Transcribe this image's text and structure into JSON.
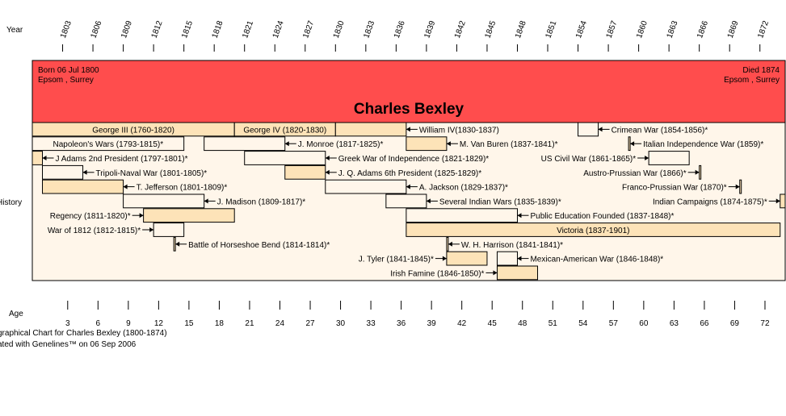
{
  "chart_data": {
    "type": "timeline",
    "title": "Charles Bexley",
    "axes": {
      "year_label": "Year",
      "age_label": "Age",
      "history_label": "History",
      "year_ticks": [
        "1803",
        "1806",
        "1809",
        "1812",
        "1815",
        "1818",
        "1821",
        "1824",
        "1827",
        "1830",
        "1833",
        "1836",
        "1839",
        "1842",
        "1845",
        "1848",
        "1851",
        "1854",
        "1857",
        "1860",
        "1863",
        "1866",
        "1869",
        "1872"
      ],
      "age_ticks": [
        "3",
        "6",
        "9",
        "12",
        "15",
        "18",
        "21",
        "24",
        "27",
        "30",
        "33",
        "36",
        "39",
        "42",
        "45",
        "48",
        "51",
        "54",
        "57",
        "60",
        "63",
        "66",
        "69",
        "72"
      ]
    },
    "person": {
      "birth_line1": "Born 06 Jul 1800",
      "birth_line2": "Epsom , Surrey",
      "death_line1": "Died 1874",
      "death_line2": "Epsom , Surrey",
      "birth_year": 1800.5,
      "death_year": 1874
    },
    "events": [
      {
        "label": "George III (1760-1820)",
        "start": 1800,
        "end": 1820,
        "row": 0,
        "style": "inside"
      },
      {
        "label": "George IV (1820-1830)",
        "start": 1820,
        "end": 1830,
        "row": 0,
        "style": "inside"
      },
      {
        "label": "William IV(1830-1837)",
        "start": 1830,
        "end": 1837,
        "row": 0,
        "style": "arrow"
      },
      {
        "label": "Crimean War (1854-1856)*",
        "start": 1854,
        "end": 1856,
        "row": 0,
        "style": "arrow",
        "outline": true
      },
      {
        "label": "Napoleon's Wars (1793-1815)*",
        "start": 1800,
        "end": 1815,
        "row": 1,
        "style": "inside",
        "outline": true
      },
      {
        "label": "J. Monroe (1817-1825)*",
        "start": 1817,
        "end": 1825,
        "row": 1,
        "style": "arrow",
        "outline": true
      },
      {
        "label": "M. Van Buren (1837-1841)*",
        "start": 1837,
        "end": 1841,
        "row": 1,
        "style": "arrow"
      },
      {
        "label": "Italian Independence War (1859)*",
        "start": 1859,
        "end": 1859,
        "row": 1,
        "style": "arrow"
      },
      {
        "label": "J Adams 2nd President (1797-1801)*",
        "start": 1800,
        "end": 1801,
        "row": 2,
        "style": "arrow"
      },
      {
        "label": "Greek War of Independence (1821-1829)*",
        "start": 1821,
        "end": 1829,
        "row": 2,
        "style": "arrow",
        "outline": true
      },
      {
        "label": "US Civil War (1861-1865)*",
        "start": 1861,
        "end": 1865,
        "row": 2,
        "style": "left",
        "outline": true
      },
      {
        "label": "Tripoli-Naval War (1801-1805)*",
        "start": 1801,
        "end": 1805,
        "row": 3,
        "style": "arrow",
        "outline": true
      },
      {
        "label": "J. Q. Adams 6th President (1825-1829)*",
        "start": 1825,
        "end": 1829,
        "row": 3,
        "style": "arrow"
      },
      {
        "label": "Austro-Prussian War (1866)*",
        "start": 1866,
        "end": 1866,
        "row": 3,
        "style": "left"
      },
      {
        "label": "T. Jefferson (1801-1809)*",
        "start": 1801,
        "end": 1809,
        "row": 4,
        "style": "arrow"
      },
      {
        "label": "A. Jackson (1829-1837)*",
        "start": 1829,
        "end": 1837,
        "row": 4,
        "style": "arrow",
        "outline": true
      },
      {
        "label": "Franco-Prussian War (1870)*",
        "start": 1870,
        "end": 1870,
        "row": 4,
        "style": "left"
      },
      {
        "label": "J. Madison (1809-1817)*",
        "start": 1809,
        "end": 1817,
        "row": 5,
        "style": "arrow",
        "outline": true
      },
      {
        "label": "Several Indian Wars (1835-1839)*",
        "start": 1835,
        "end": 1839,
        "row": 5,
        "style": "arrow",
        "outline": true
      },
      {
        "label": "Indian Campaigns (1874-1875)*",
        "start": 1874,
        "end": 1875,
        "row": 5,
        "style": "left"
      },
      {
        "label": "Regency (1811-1820)*",
        "start": 1811,
        "end": 1820,
        "row": 6,
        "style": "left"
      },
      {
        "label": "Public Education Founded (1837-1848)*",
        "start": 1837,
        "end": 1848,
        "row": 6,
        "style": "arrow",
        "outline": true
      },
      {
        "label": "War of 1812 (1812-1815)*",
        "start": 1812,
        "end": 1815,
        "row": 7,
        "style": "left",
        "outline": true
      },
      {
        "label": "Victoria (1837-1901)",
        "start": 1837,
        "end": 1874,
        "row": 7,
        "style": "inside"
      },
      {
        "label": "Battle of Horseshoe Bend (1814-1814)*",
        "start": 1814,
        "end": 1814,
        "row": 8,
        "style": "arrow"
      },
      {
        "label": "W. H. Harrison (1841-1841)*",
        "start": 1841,
        "end": 1841,
        "row": 8,
        "style": "arrow"
      },
      {
        "label": "J. Tyler (1841-1845)*",
        "start": 1841,
        "end": 1845,
        "row": 9,
        "style": "left"
      },
      {
        "label": "Mexican-American War (1846-1848)*",
        "start": 1846,
        "end": 1848,
        "row": 9,
        "style": "arrow",
        "outline": true
      },
      {
        "label": "Irish Famine (1846-1850)*",
        "start": 1846,
        "end": 1850,
        "row": 10,
        "style": "left"
      }
    ]
  },
  "footer": {
    "line1": "graphical Chart for Charles Bexley (1800-1874)",
    "line2": "ated with Genelines™ on 06 Sep 2006"
  },
  "colors": {
    "header_fill": "#ff4d4d",
    "bar_fill": "#fde3b8",
    "panel_fill": "#fff6ea",
    "border": "#000000"
  }
}
